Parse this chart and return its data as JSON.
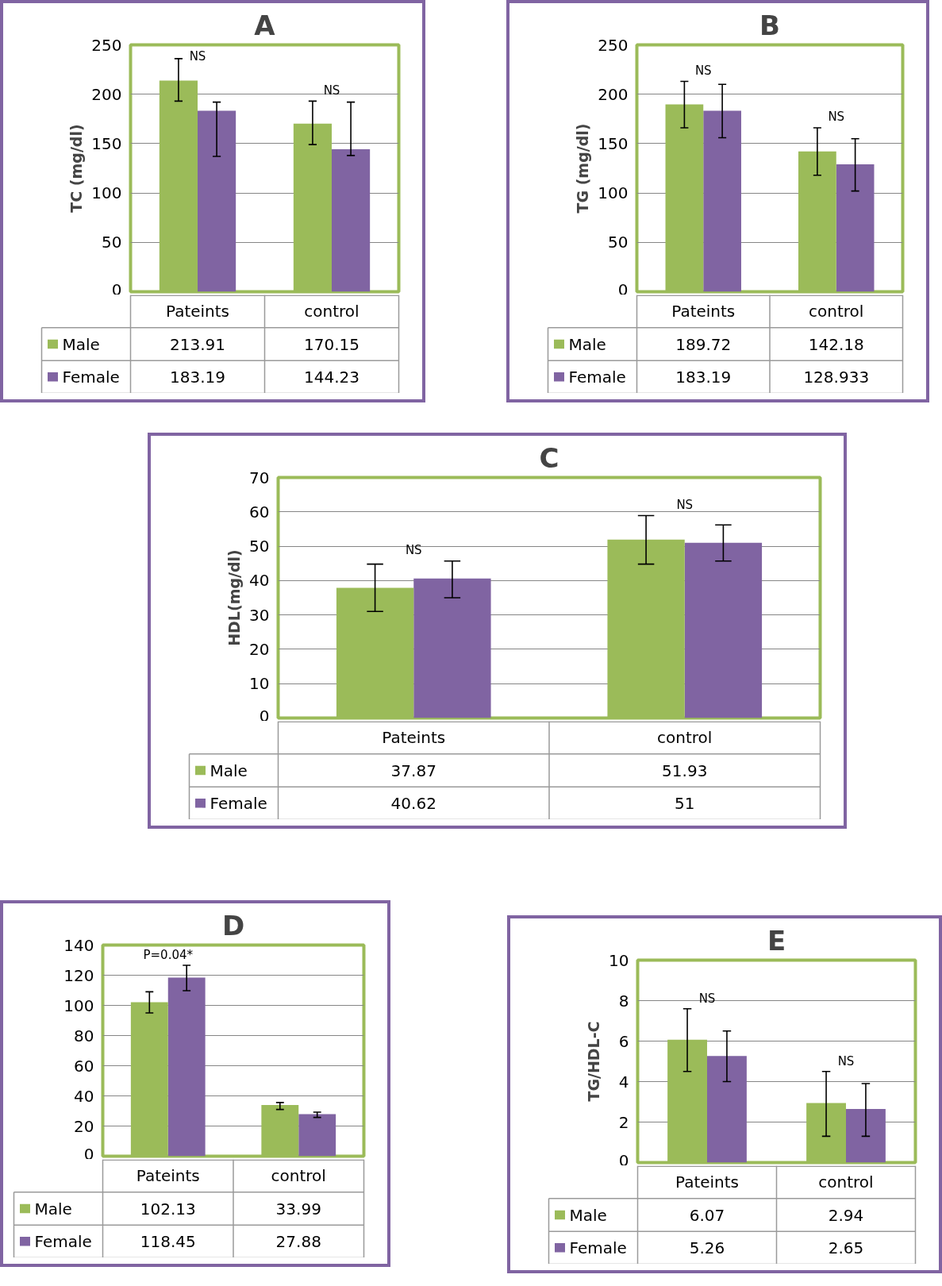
{
  "chart_data": [
    {
      "type": "bar",
      "title": "A",
      "ylabel": "TC (mg/dl)",
      "categories": [
        "Pateints",
        "control"
      ],
      "ylim": [
        0,
        250
      ],
      "yticks": [
        0,
        50,
        100,
        150,
        200,
        250
      ],
      "grid": "y",
      "legend": "bottom",
      "data_labels": true,
      "series": [
        {
          "name": "Male",
          "color": "#9bbb59",
          "values": [
            213.91,
            170.15
          ],
          "errors": [
            [
              193,
              236
            ],
            [
              149,
              193
            ]
          ]
        },
        {
          "name": "Female",
          "color": "#8064a2",
          "values": [
            183.19,
            144.23
          ],
          "errors": [
            [
              137,
              192
            ],
            [
              138,
              192
            ]
          ]
        }
      ],
      "annotations": [
        "NS",
        "NS"
      ]
    },
    {
      "type": "bar",
      "title": "B",
      "ylabel": "TG (mg/dl)",
      "categories": [
        "Pateints",
        "control"
      ],
      "ylim": [
        0,
        250
      ],
      "yticks": [
        0,
        50,
        100,
        150,
        200,
        250
      ],
      "grid": "y",
      "legend": "bottom",
      "data_labels": true,
      "series": [
        {
          "name": "Male",
          "color": "#9bbb59",
          "values": [
            189.72,
            142.18
          ],
          "errors": [
            [
              166,
              213
            ],
            [
              118,
              166
            ]
          ]
        },
        {
          "name": "Female",
          "color": "#8064a2",
          "values": [
            183.19,
            128.933
          ],
          "errors": [
            [
              156,
              210
            ],
            [
              102,
              155
            ]
          ]
        }
      ],
      "annotations": [
        "NS",
        "NS"
      ]
    },
    {
      "type": "bar",
      "title": "C",
      "ylabel": "HDL(mg/dl)",
      "categories": [
        "Pateints",
        "control"
      ],
      "ylim": [
        0,
        70
      ],
      "yticks": [
        0,
        10,
        20,
        30,
        40,
        50,
        60,
        70
      ],
      "grid": "y",
      "legend": "bottom",
      "data_labels": true,
      "series": [
        {
          "name": "Male",
          "color": "#9bbb59",
          "values": [
            37.87,
            51.93
          ],
          "errors": [
            [
              31,
              44.8
            ],
            [
              44.8,
              58.9
            ]
          ]
        },
        {
          "name": "Female",
          "color": "#8064a2",
          "values": [
            40.62,
            51
          ],
          "errors": [
            [
              35,
              45.7
            ],
            [
              45.7,
              56.2
            ]
          ]
        }
      ],
      "annotations": [
        "NS",
        "NS"
      ]
    },
    {
      "type": "bar",
      "title": "D",
      "categories": [
        "Pateints",
        "control"
      ],
      "ylim": [
        0,
        140
      ],
      "yticks": [
        0,
        20,
        40,
        60,
        80,
        100,
        120,
        140
      ],
      "grid": "y",
      "legend": "bottom",
      "data_labels": true,
      "series": [
        {
          "name": "Male",
          "color": "#9bbb59",
          "values": [
            102.13,
            33.99
          ],
          "errors": [
            [
              95,
              109
            ],
            [
              31,
              35.6
            ]
          ]
        },
        {
          "name": "Female",
          "color": "#8064a2",
          "values": [
            118.45,
            27.88
          ],
          "errors": [
            [
              109.7,
              126.6
            ],
            [
              25.7,
              29.2
            ]
          ]
        }
      ],
      "annotations": [
        "P=0.04*"
      ]
    },
    {
      "type": "bar",
      "title": "E",
      "ylabel": "TG/HDL-C",
      "categories": [
        "Pateints",
        "control"
      ],
      "ylim": [
        0,
        10
      ],
      "yticks": [
        0,
        2,
        4,
        6,
        8,
        10
      ],
      "grid": "y",
      "legend": "bottom",
      "data_labels": true,
      "series": [
        {
          "name": "Male",
          "color": "#9bbb59",
          "values": [
            6.07,
            2.94
          ],
          "errors": [
            [
              4.5,
              7.6
            ],
            [
              1.3,
              4.5
            ]
          ]
        },
        {
          "name": "Female",
          "color": "#8064a2",
          "values": [
            5.26,
            2.65
          ],
          "errors": [
            [
              4.0,
              6.5
            ],
            [
              1.3,
              3.9
            ]
          ]
        }
      ],
      "annotations": [
        "NS",
        "NS"
      ]
    }
  ]
}
